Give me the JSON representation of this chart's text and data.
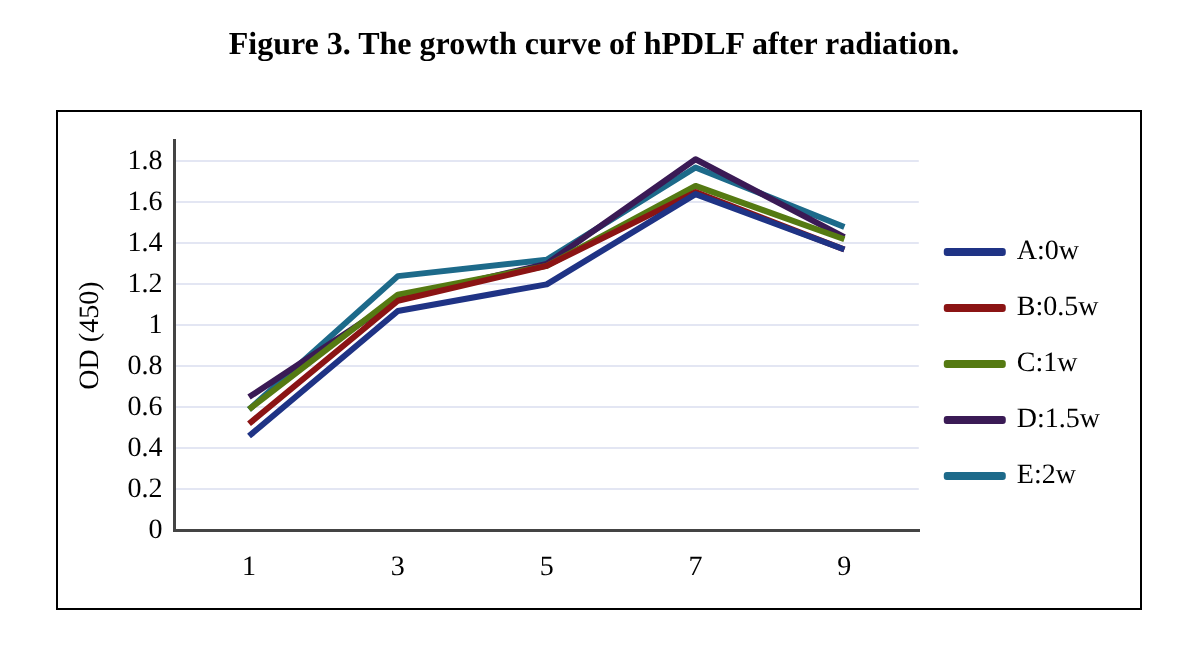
{
  "chart_data": {
    "type": "line",
    "title": "Figure 3. The growth curve of hPDLF after radiation.",
    "ylabel": "OD (450)",
    "categories": [
      "1",
      "3",
      "5",
      "7",
      "9"
    ],
    "series": [
      {
        "name": "A:0w",
        "color": "#1f3385",
        "values": [
          0.46,
          1.07,
          1.2,
          1.64,
          1.37
        ]
      },
      {
        "name": "B:0.5w",
        "color": "#8b1414",
        "values": [
          0.52,
          1.12,
          1.29,
          1.65,
          1.37
        ]
      },
      {
        "name": "C:1w",
        "color": "#557a12",
        "values": [
          0.59,
          1.15,
          1.29,
          1.68,
          1.42
        ]
      },
      {
        "name": "D:1.5w",
        "color": "#3a1a55",
        "values": [
          0.65,
          1.13,
          1.3,
          1.81,
          1.43
        ]
      },
      {
        "name": "E:2w",
        "color": "#1d6a8a",
        "values": [
          0.59,
          1.24,
          1.32,
          1.77,
          1.48
        ]
      }
    ],
    "ylim": [
      0,
      1.9
    ],
    "yticks": [
      0,
      0.2,
      0.4,
      0.6,
      0.8,
      1,
      1.2,
      1.4,
      1.6,
      1.8
    ],
    "grid": "y",
    "legend": "right",
    "marker": "none",
    "line_style": "solid"
  }
}
